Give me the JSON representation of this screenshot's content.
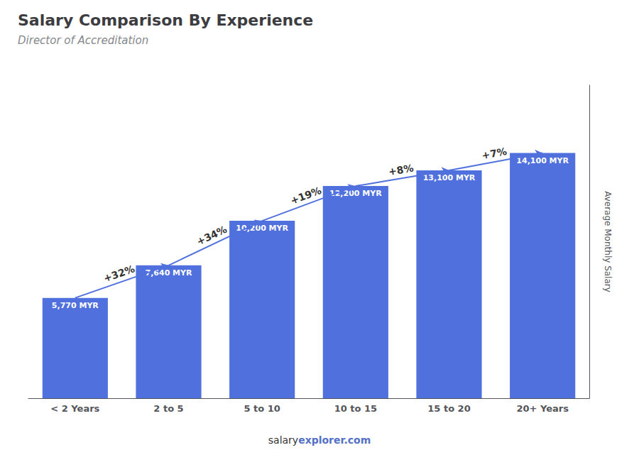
{
  "chart_data": {
    "type": "bar",
    "title": "Salary Comparison By Experience",
    "subtitle": "Director of Accreditation",
    "categories": [
      "< 2 Years",
      "2 to 5",
      "5 to 10",
      "10 to 15",
      "15 to 20",
      "20+ Years"
    ],
    "values": [
      5770,
      7640,
      10200,
      12200,
      13100,
      14100
    ],
    "value_labels": [
      "5,770 MYR",
      "7,640 MYR",
      "10,200 MYR",
      "12,200 MYR",
      "13,100 MYR",
      "14,100 MYR"
    ],
    "data_labels": true,
    "ylabel": "Average Monthly Salary",
    "ylim": [
      0,
      18000
    ],
    "tick_labels": "x",
    "grid": false,
    "annotations": [
      {
        "text": "+32%",
        "from": "< 2 Years",
        "to": "2 to 5"
      },
      {
        "text": "+34%",
        "from": "2 to 5",
        "to": "5 to 10"
      },
      {
        "text": "+19%",
        "from": "5 to 10",
        "to": "10 to 15"
      },
      {
        "text": "+8%",
        "from": "10 to 15",
        "to": "15 to 20"
      },
      {
        "text": "+7%",
        "from": "15 to 20",
        "to": "20+ Years"
      }
    ],
    "footer": [
      "salary",
      "explorer.com"
    ]
  }
}
